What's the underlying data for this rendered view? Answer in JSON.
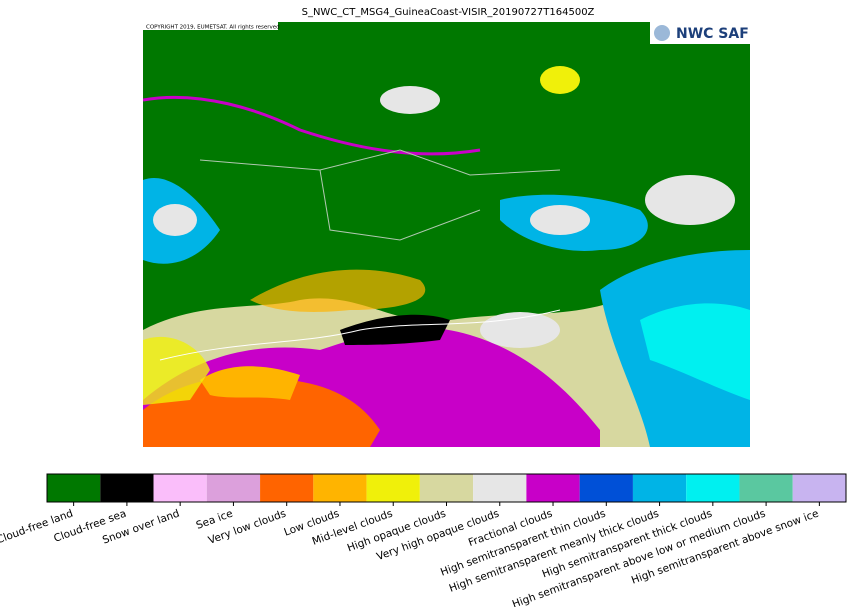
{
  "header": {
    "title": "S_NWC_CT_MSG4_GuineaCoast-VISIR_20190727T164500Z"
  },
  "map": {
    "copyright": "COPYRIGHT 2019, EUMETSAT. All rights reserved",
    "logo": "NWC SAF"
  },
  "legend": {
    "items": [
      {
        "label": "Cloud-free land",
        "color": "#007800"
      },
      {
        "label": "Cloud-free sea",
        "color": "#000000"
      },
      {
        "label": "Snow over land",
        "color": "#fabefa"
      },
      {
        "label": "Sea ice",
        "color": "#dca0dc"
      },
      {
        "label": "Very low clouds",
        "color": "#ff6400"
      },
      {
        "label": "Low clouds",
        "color": "#ffb400"
      },
      {
        "label": "Mid-level clouds",
        "color": "#f0f00a"
      },
      {
        "label": "High opaque clouds",
        "color": "#d7d8a0"
      },
      {
        "label": "Very high opaque clouds",
        "color": "#e6e6e6"
      },
      {
        "label": "Fractional clouds",
        "color": "#c800c8"
      },
      {
        "label": "High semitransparent thin clouds",
        "color": "#0050d7"
      },
      {
        "label": "High semitransparent meanly thick clouds",
        "color": "#00b4e6"
      },
      {
        "label": "High semitransparent thick clouds",
        "color": "#00f0f0"
      },
      {
        "label": "High semitransparent above low or medium clouds",
        "color": "#5ac8a0"
      },
      {
        "label": "High semitransparent above snow ice",
        "color": "#c8b4f0"
      }
    ]
  }
}
